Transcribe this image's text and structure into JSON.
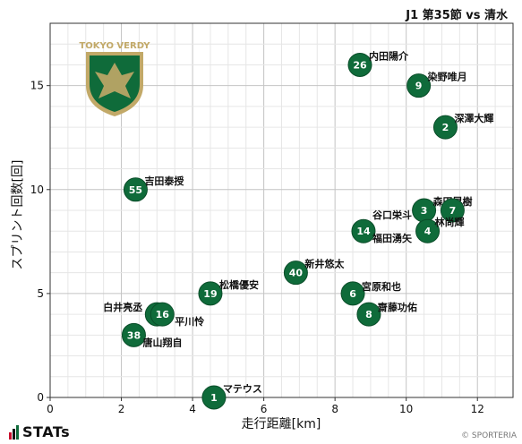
{
  "header": {
    "title": "J1 第35節 vs 清水"
  },
  "footer": {
    "brand": "STATs",
    "copyright": "© SPORTERIA"
  },
  "colors": {
    "marker": "#0f6b3a",
    "marker_edge": "#0a4d29",
    "grid": "#d0d0d0",
    "brand_red": "#c8102e",
    "brand_green": "#0f6b3a",
    "emblem_gold": "#c2a968"
  },
  "logo": {
    "text": "TOKYO VERDY",
    "icon": "eagle-emblem"
  },
  "chart_data": {
    "type": "scatter",
    "xlabel": "走行距離[km]",
    "ylabel": "スプリント回数[回]",
    "xlim": [
      0,
      13
    ],
    "ylim": [
      0,
      18
    ],
    "xticks": [
      0,
      2,
      4,
      6,
      8,
      10,
      12
    ],
    "yticks": [
      0,
      5,
      10,
      15
    ],
    "grid": true,
    "points": [
      {
        "number": "26",
        "name": "内田陽介",
        "x": 8.7,
        "y": 16
      },
      {
        "number": "9",
        "name": "染野唯月",
        "x": 10.35,
        "y": 15
      },
      {
        "number": "2",
        "name": "深澤大輝",
        "x": 11.1,
        "y": 13
      },
      {
        "number": "55",
        "name": "吉田泰授",
        "x": 2.4,
        "y": 10
      },
      {
        "number": "3",
        "name": "森田晃樹",
        "x": 10.5,
        "y": 9
      },
      {
        "number": "7",
        "name": "",
        "x": 11.3,
        "y": 9
      },
      {
        "number": "14",
        "name": "谷口栄斗",
        "x": 8.8,
        "y": 8
      },
      {
        "number": "",
        "name": "福田湧矢",
        "x": 8.8,
        "y": 8
      },
      {
        "number": "4",
        "name": "林尚輝",
        "x": 10.6,
        "y": 8
      },
      {
        "number": "40",
        "name": "新井悠太",
        "x": 6.9,
        "y": 6
      },
      {
        "number": "19",
        "name": "松橋優安",
        "x": 4.5,
        "y": 5
      },
      {
        "number": "6",
        "name": "宮原和也",
        "x": 8.5,
        "y": 5
      },
      {
        "number": "8",
        "name": "齋藤功佑",
        "x": 8.95,
        "y": 4
      },
      {
        "number": "22",
        "name": "白井亮丞",
        "x": 3.0,
        "y": 4
      },
      {
        "number": "16",
        "name": "平川怜",
        "x": 3.15,
        "y": 4
      },
      {
        "number": "38",
        "name": "唐山翔自",
        "x": 2.35,
        "y": 3
      },
      {
        "number": "1",
        "name": "マテウス",
        "x": 4.6,
        "y": 0
      }
    ]
  }
}
